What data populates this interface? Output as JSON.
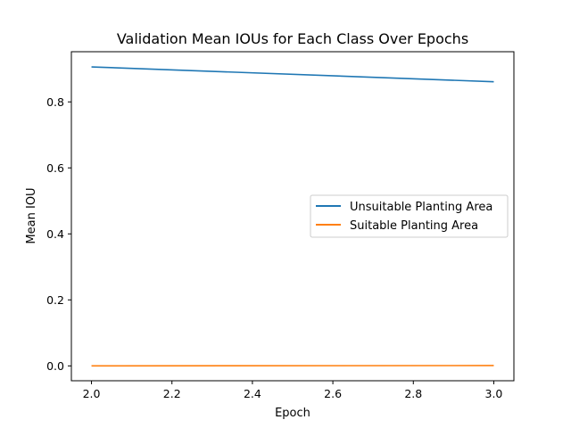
{
  "chart_data": {
    "type": "line",
    "title": "Validation Mean IOUs for Each Class Over Epochs",
    "xlabel": "Epoch",
    "ylabel": "Mean IOU",
    "xlim": [
      1.95,
      3.05
    ],
    "ylim": [
      -0.045,
      0.952
    ],
    "xticks": [
      2.0,
      2.2,
      2.4,
      2.6,
      2.8,
      3.0
    ],
    "xtick_labels": [
      "2.0",
      "2.2",
      "2.4",
      "2.6",
      "2.8",
      "3.0"
    ],
    "yticks": [
      0.0,
      0.2,
      0.4,
      0.6,
      0.8
    ],
    "ytick_labels": [
      "0.0",
      "0.2",
      "0.4",
      "0.6",
      "0.8"
    ],
    "x": [
      2.0,
      3.0
    ],
    "grid": false,
    "legend_position": "center-right",
    "series": [
      {
        "name": "Unsuitable Planting Area",
        "values": [
          0.906,
          0.861
        ],
        "color": "#1f77b4"
      },
      {
        "name": "Suitable Planting Area",
        "values": [
          0.0,
          0.001
        ],
        "color": "#ff7f0e"
      }
    ]
  }
}
